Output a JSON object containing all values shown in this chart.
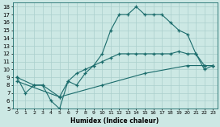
{
  "xlabel": "Humidex (Indice chaleur)",
  "bg_color": "#cce8e4",
  "line_color": "#1a6b6b",
  "grid_color": "#aacfcc",
  "xlim": [
    -0.5,
    23.5
  ],
  "ylim": [
    5,
    18.5
  ],
  "xticks": [
    0,
    1,
    2,
    3,
    4,
    5,
    6,
    7,
    8,
    9,
    10,
    11,
    12,
    13,
    14,
    15,
    16,
    17,
    18,
    19,
    20,
    21,
    22,
    23
  ],
  "yticks": [
    5,
    6,
    7,
    8,
    9,
    10,
    11,
    12,
    13,
    14,
    15,
    16,
    17,
    18
  ],
  "line1_x": [
    0,
    1,
    2,
    3,
    4,
    5,
    6,
    7,
    8,
    9,
    10,
    11,
    12,
    13,
    14,
    15,
    16,
    17,
    18,
    19,
    20,
    21,
    22,
    23
  ],
  "line1_y": [
    9,
    7,
    8,
    8,
    6,
    5,
    8.5,
    8,
    9.5,
    10.5,
    12,
    15,
    17,
    17,
    18,
    17,
    17,
    17,
    16,
    15,
    14.5,
    12,
    10,
    10.5
  ],
  "line2_x": [
    0,
    2,
    3,
    5,
    6,
    7,
    8,
    9,
    10,
    11,
    12,
    13,
    14,
    15,
    16,
    17,
    18,
    19,
    20,
    21,
    22,
    23
  ],
  "line2_y": [
    9,
    8,
    8,
    6.5,
    8.5,
    9.5,
    10,
    10.5,
    11,
    11.5,
    12,
    12,
    12,
    12,
    12,
    12,
    12,
    12.3,
    12,
    12,
    10.5,
    10.5
  ],
  "line3_x": [
    0,
    5,
    10,
    15,
    20,
    22,
    23
  ],
  "line3_y": [
    8.5,
    6.5,
    8.0,
    9.5,
    10.5,
    10.5,
    10.5
  ]
}
